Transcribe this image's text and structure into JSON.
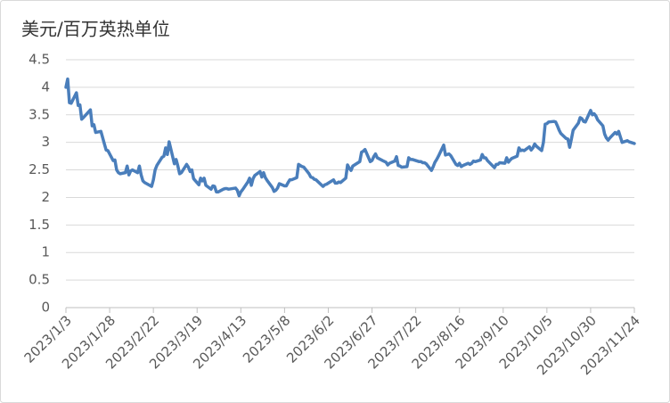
{
  "chart_data": {
    "type": "line",
    "title": "美元/百万英热单位",
    "x": [
      "2023/1/3",
      "2023/1/4",
      "2023/1/5",
      "2023/1/6",
      "2023/1/9",
      "2023/1/10",
      "2023/1/11",
      "2023/1/12",
      "2023/1/13",
      "2023/1/17",
      "2023/1/18",
      "2023/1/19",
      "2023/1/20",
      "2023/1/23",
      "2023/1/25",
      "2023/1/26",
      "2023/1/27",
      "2023/1/30",
      "2023/1/31",
      "2023/2/1",
      "2023/2/2",
      "2023/2/3",
      "2023/2/6",
      "2023/2/7",
      "2023/2/8",
      "2023/2/9",
      "2023/2/10",
      "2023/2/13",
      "2023/2/14",
      "2023/2/15",
      "2023/2/16",
      "2023/2/17",
      "2023/2/21",
      "2023/2/22",
      "2023/2/23",
      "2023/2/24",
      "2023/2/27",
      "2023/2/28",
      "2023/3/1",
      "2023/3/2",
      "2023/3/3",
      "2023/3/6",
      "2023/3/7",
      "2023/3/8",
      "2023/3/9",
      "2023/3/10",
      "2023/3/13",
      "2023/3/14",
      "2023/3/15",
      "2023/3/16",
      "2023/3/17",
      "2023/3/20",
      "2023/3/21",
      "2023/3/22",
      "2023/3/23",
      "2023/3/24",
      "2023/3/27",
      "2023/3/28",
      "2023/3/29",
      "2023/3/30",
      "2023/3/31",
      "2023/4/3",
      "2023/4/4",
      "2023/4/5",
      "2023/4/6",
      "2023/4/10",
      "2023/4/11",
      "2023/4/12",
      "2023/4/13",
      "2023/4/14",
      "2023/4/17",
      "2023/4/18",
      "2023/4/19",
      "2023/4/20",
      "2023/4/21",
      "2023/4/24",
      "2023/4/25",
      "2023/4/26",
      "2023/4/27",
      "2023/4/28",
      "2023/5/1",
      "2023/5/2",
      "2023/5/3",
      "2023/5/4",
      "2023/5/5",
      "2023/5/8",
      "2023/5/9",
      "2023/5/10",
      "2023/5/11",
      "2023/5/12",
      "2023/5/15",
      "2023/5/16",
      "2023/5/17",
      "2023/5/18",
      "2023/5/19",
      "2023/5/22",
      "2023/5/23",
      "2023/5/24",
      "2023/5/25",
      "2023/5/26",
      "2023/5/30",
      "2023/5/31",
      "2023/6/1",
      "2023/6/2",
      "2023/6/5",
      "2023/6/6",
      "2023/6/7",
      "2023/6/8",
      "2023/6/9",
      "2023/6/12",
      "2023/6/13",
      "2023/6/14",
      "2023/6/15",
      "2023/6/16",
      "2023/6/20",
      "2023/6/21",
      "2023/6/22",
      "2023/6/23",
      "2023/6/26",
      "2023/6/27",
      "2023/6/28",
      "2023/6/29",
      "2023/6/30",
      "2023/7/3",
      "2023/7/5",
      "2023/7/6",
      "2023/7/7",
      "2023/7/10",
      "2023/7/11",
      "2023/7/12",
      "2023/7/13",
      "2023/7/14",
      "2023/7/17",
      "2023/7/18",
      "2023/7/19",
      "2023/7/20",
      "2023/7/21",
      "2023/7/24",
      "2023/7/25",
      "2023/7/26",
      "2023/7/27",
      "2023/7/28",
      "2023/7/31",
      "2023/8/1",
      "2023/8/2",
      "2023/8/3",
      "2023/8/4",
      "2023/8/7",
      "2023/8/8",
      "2023/8/9",
      "2023/8/10",
      "2023/8/11",
      "2023/8/14",
      "2023/8/15",
      "2023/8/16",
      "2023/8/17",
      "2023/8/18",
      "2023/8/21",
      "2023/8/22",
      "2023/8/23",
      "2023/8/24",
      "2023/8/25",
      "2023/8/28",
      "2023/8/29",
      "2023/8/30",
      "2023/8/31",
      "2023/9/1",
      "2023/9/5",
      "2023/9/6",
      "2023/9/7",
      "2023/9/8",
      "2023/9/11",
      "2023/9/12",
      "2023/9/13",
      "2023/9/14",
      "2023/9/15",
      "2023/9/18",
      "2023/9/19",
      "2023/9/20",
      "2023/9/21",
      "2023/9/22",
      "2023/9/25",
      "2023/9/26",
      "2023/9/27",
      "2023/9/28",
      "2023/9/29",
      "2023/10/2",
      "2023/10/3",
      "2023/10/4",
      "2023/10/5",
      "2023/10/6",
      "2023/10/9",
      "2023/10/10",
      "2023/10/11",
      "2023/10/12",
      "2023/10/13",
      "2023/10/16",
      "2023/10/17",
      "2023/10/18",
      "2023/10/19",
      "2023/10/20",
      "2023/10/23",
      "2023/10/24",
      "2023/10/25",
      "2023/10/26",
      "2023/10/27",
      "2023/10/30",
      "2023/10/31",
      "2023/11/1",
      "2023/11/2",
      "2023/11/3",
      "2023/11/6",
      "2023/11/7",
      "2023/11/8",
      "2023/11/9",
      "2023/11/10",
      "2023/11/13",
      "2023/11/14",
      "2023/11/15",
      "2023/11/16",
      "2023/11/17",
      "2023/11/20",
      "2023/11/21",
      "2023/11/22",
      "2023/11/24"
    ],
    "values": [
      4.0,
      4.15,
      3.72,
      3.71,
      3.9,
      3.67,
      3.68,
      3.42,
      3.45,
      3.59,
      3.3,
      3.32,
      3.18,
      3.2,
      2.97,
      2.86,
      2.85,
      2.67,
      2.68,
      2.5,
      2.45,
      2.43,
      2.45,
      2.57,
      2.41,
      2.48,
      2.5,
      2.45,
      2.57,
      2.41,
      2.3,
      2.27,
      2.2,
      2.32,
      2.5,
      2.58,
      2.73,
      2.75,
      2.9,
      2.78,
      3.01,
      2.61,
      2.69,
      2.57,
      2.43,
      2.45,
      2.6,
      2.55,
      2.47,
      2.5,
      2.34,
      2.23,
      2.35,
      2.3,
      2.35,
      2.22,
      2.15,
      2.21,
      2.2,
      2.1,
      2.1,
      2.15,
      2.16,
      2.16,
      2.15,
      2.17,
      2.13,
      2.03,
      2.1,
      2.14,
      2.28,
      2.35,
      2.22,
      2.34,
      2.4,
      2.47,
      2.37,
      2.45,
      2.36,
      2.31,
      2.18,
      2.11,
      2.13,
      2.17,
      2.25,
      2.21,
      2.21,
      2.27,
      2.32,
      2.32,
      2.36,
      2.6,
      2.58,
      2.56,
      2.55,
      2.43,
      2.37,
      2.36,
      2.33,
      2.32,
      2.2,
      2.23,
      2.24,
      2.26,
      2.32,
      2.26,
      2.26,
      2.28,
      2.27,
      2.35,
      2.59,
      2.53,
      2.49,
      2.57,
      2.65,
      2.82,
      2.84,
      2.87,
      2.65,
      2.67,
      2.74,
      2.79,
      2.72,
      2.67,
      2.64,
      2.59,
      2.62,
      2.66,
      2.74,
      2.58,
      2.57,
      2.55,
      2.56,
      2.72,
      2.69,
      2.69,
      2.68,
      2.65,
      2.65,
      2.63,
      2.63,
      2.61,
      2.49,
      2.56,
      2.64,
      2.69,
      2.75,
      2.95,
      2.77,
      2.78,
      2.79,
      2.76,
      2.6,
      2.58,
      2.62,
      2.56,
      2.58,
      2.62,
      2.6,
      2.62,
      2.66,
      2.65,
      2.68,
      2.78,
      2.72,
      2.72,
      2.67,
      2.54,
      2.6,
      2.6,
      2.63,
      2.62,
      2.72,
      2.64,
      2.68,
      2.71,
      2.75,
      2.9,
      2.85,
      2.86,
      2.85,
      2.92,
      2.86,
      2.9,
      2.97,
      2.93,
      2.85,
      3.0,
      3.33,
      3.34,
      3.37,
      3.38,
      3.37,
      3.3,
      3.22,
      3.16,
      3.07,
      3.06,
      2.91,
      3.06,
      3.22,
      3.35,
      3.45,
      3.43,
      3.38,
      3.37,
      3.58,
      3.5,
      3.52,
      3.48,
      3.41,
      3.3,
      3.15,
      3.08,
      3.04,
      3.08,
      3.18,
      3.15,
      3.2,
      3.1,
      3.0,
      3.03,
      3.01,
      3.0,
      2.98
    ],
    "color": "#4a7ebb",
    "xlim": [
      "2023/1/3",
      "2023/11/24"
    ],
    "xticks": [
      "2023/1/3",
      "2023/1/28",
      "2023/2/22",
      "2023/3/19",
      "2023/4/13",
      "2023/5/8",
      "2023/6/2",
      "2023/6/27",
      "2023/7/22",
      "2023/8/16",
      "2023/9/10",
      "2023/10/5",
      "2023/10/30",
      "2023/11/24"
    ],
    "ylim": [
      0,
      4.5
    ],
    "yticks": [
      0,
      0.5,
      1,
      1.5,
      2,
      2.5,
      3,
      3.5,
      4,
      4.5
    ],
    "grid": true
  }
}
